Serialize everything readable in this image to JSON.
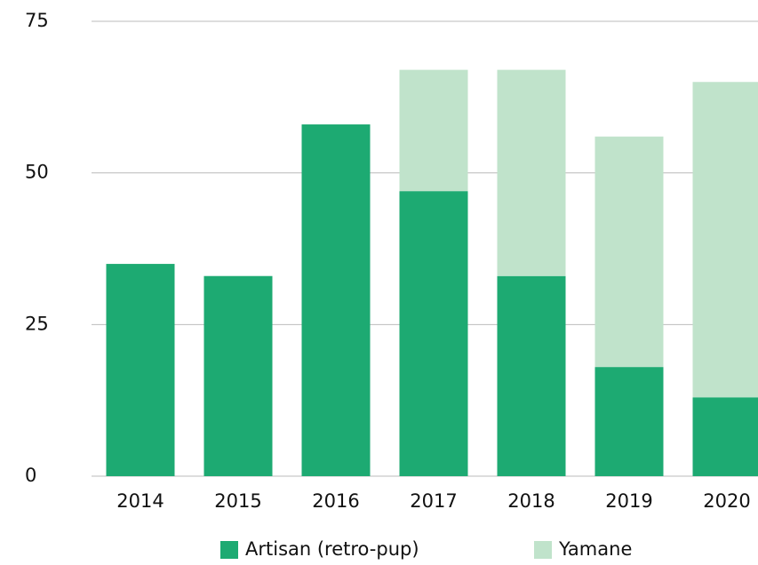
{
  "chart_data": {
    "type": "stacked_bar",
    "categories": [
      "2014",
      "2015",
      "2016",
      "2017",
      "2018",
      "2019",
      "2020"
    ],
    "series": [
      {
        "name": "Artisan (retro-pup)",
        "color": "#1daa72",
        "values": [
          35,
          33,
          58,
          47,
          33,
          18,
          13
        ]
      },
      {
        "name": "Yamane",
        "color": "#c0e3cb",
        "values": [
          0,
          0,
          0,
          20,
          34,
          38,
          52
        ]
      }
    ],
    "ylim": [
      0,
      75
    ],
    "yticks": [
      0,
      25,
      50,
      75
    ],
    "grid": true,
    "legend": "bottom"
  }
}
